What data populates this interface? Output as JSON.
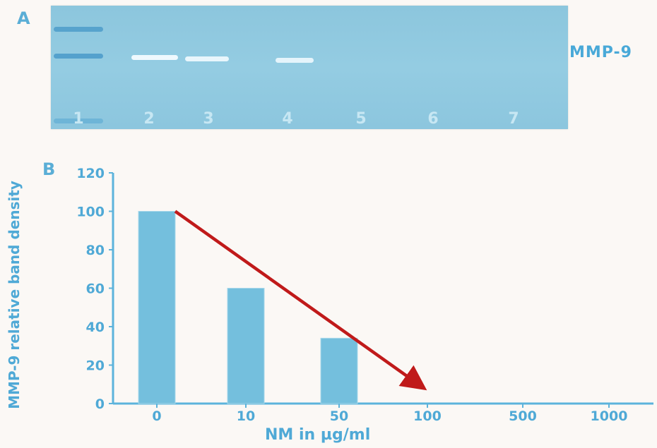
{
  "panel_a": {
    "letter": "A",
    "lanes": [
      "1",
      "2",
      "3",
      "4",
      "5",
      "6",
      "7"
    ],
    "band_label": "MMP-9"
  },
  "panel_b": {
    "letter": "B"
  },
  "colors": {
    "bar": "#74bfdd",
    "axis": "#5cb3dc",
    "arrow": "#c01a1a",
    "text": "#4fa9d6"
  },
  "chart_data": {
    "type": "bar",
    "categories": [
      "0",
      "10",
      "50",
      "100",
      "500",
      "1000"
    ],
    "values": [
      100,
      60,
      34,
      0,
      0,
      0
    ],
    "xlabel": "NM in µg/ml",
    "ylabel": "MMP-9 relative band density",
    "ylim": [
      0,
      120
    ],
    "yticks": [
      0,
      20,
      40,
      60,
      80,
      100,
      120
    ],
    "grid": false,
    "annotation": "red arrow showing decreasing trend"
  }
}
